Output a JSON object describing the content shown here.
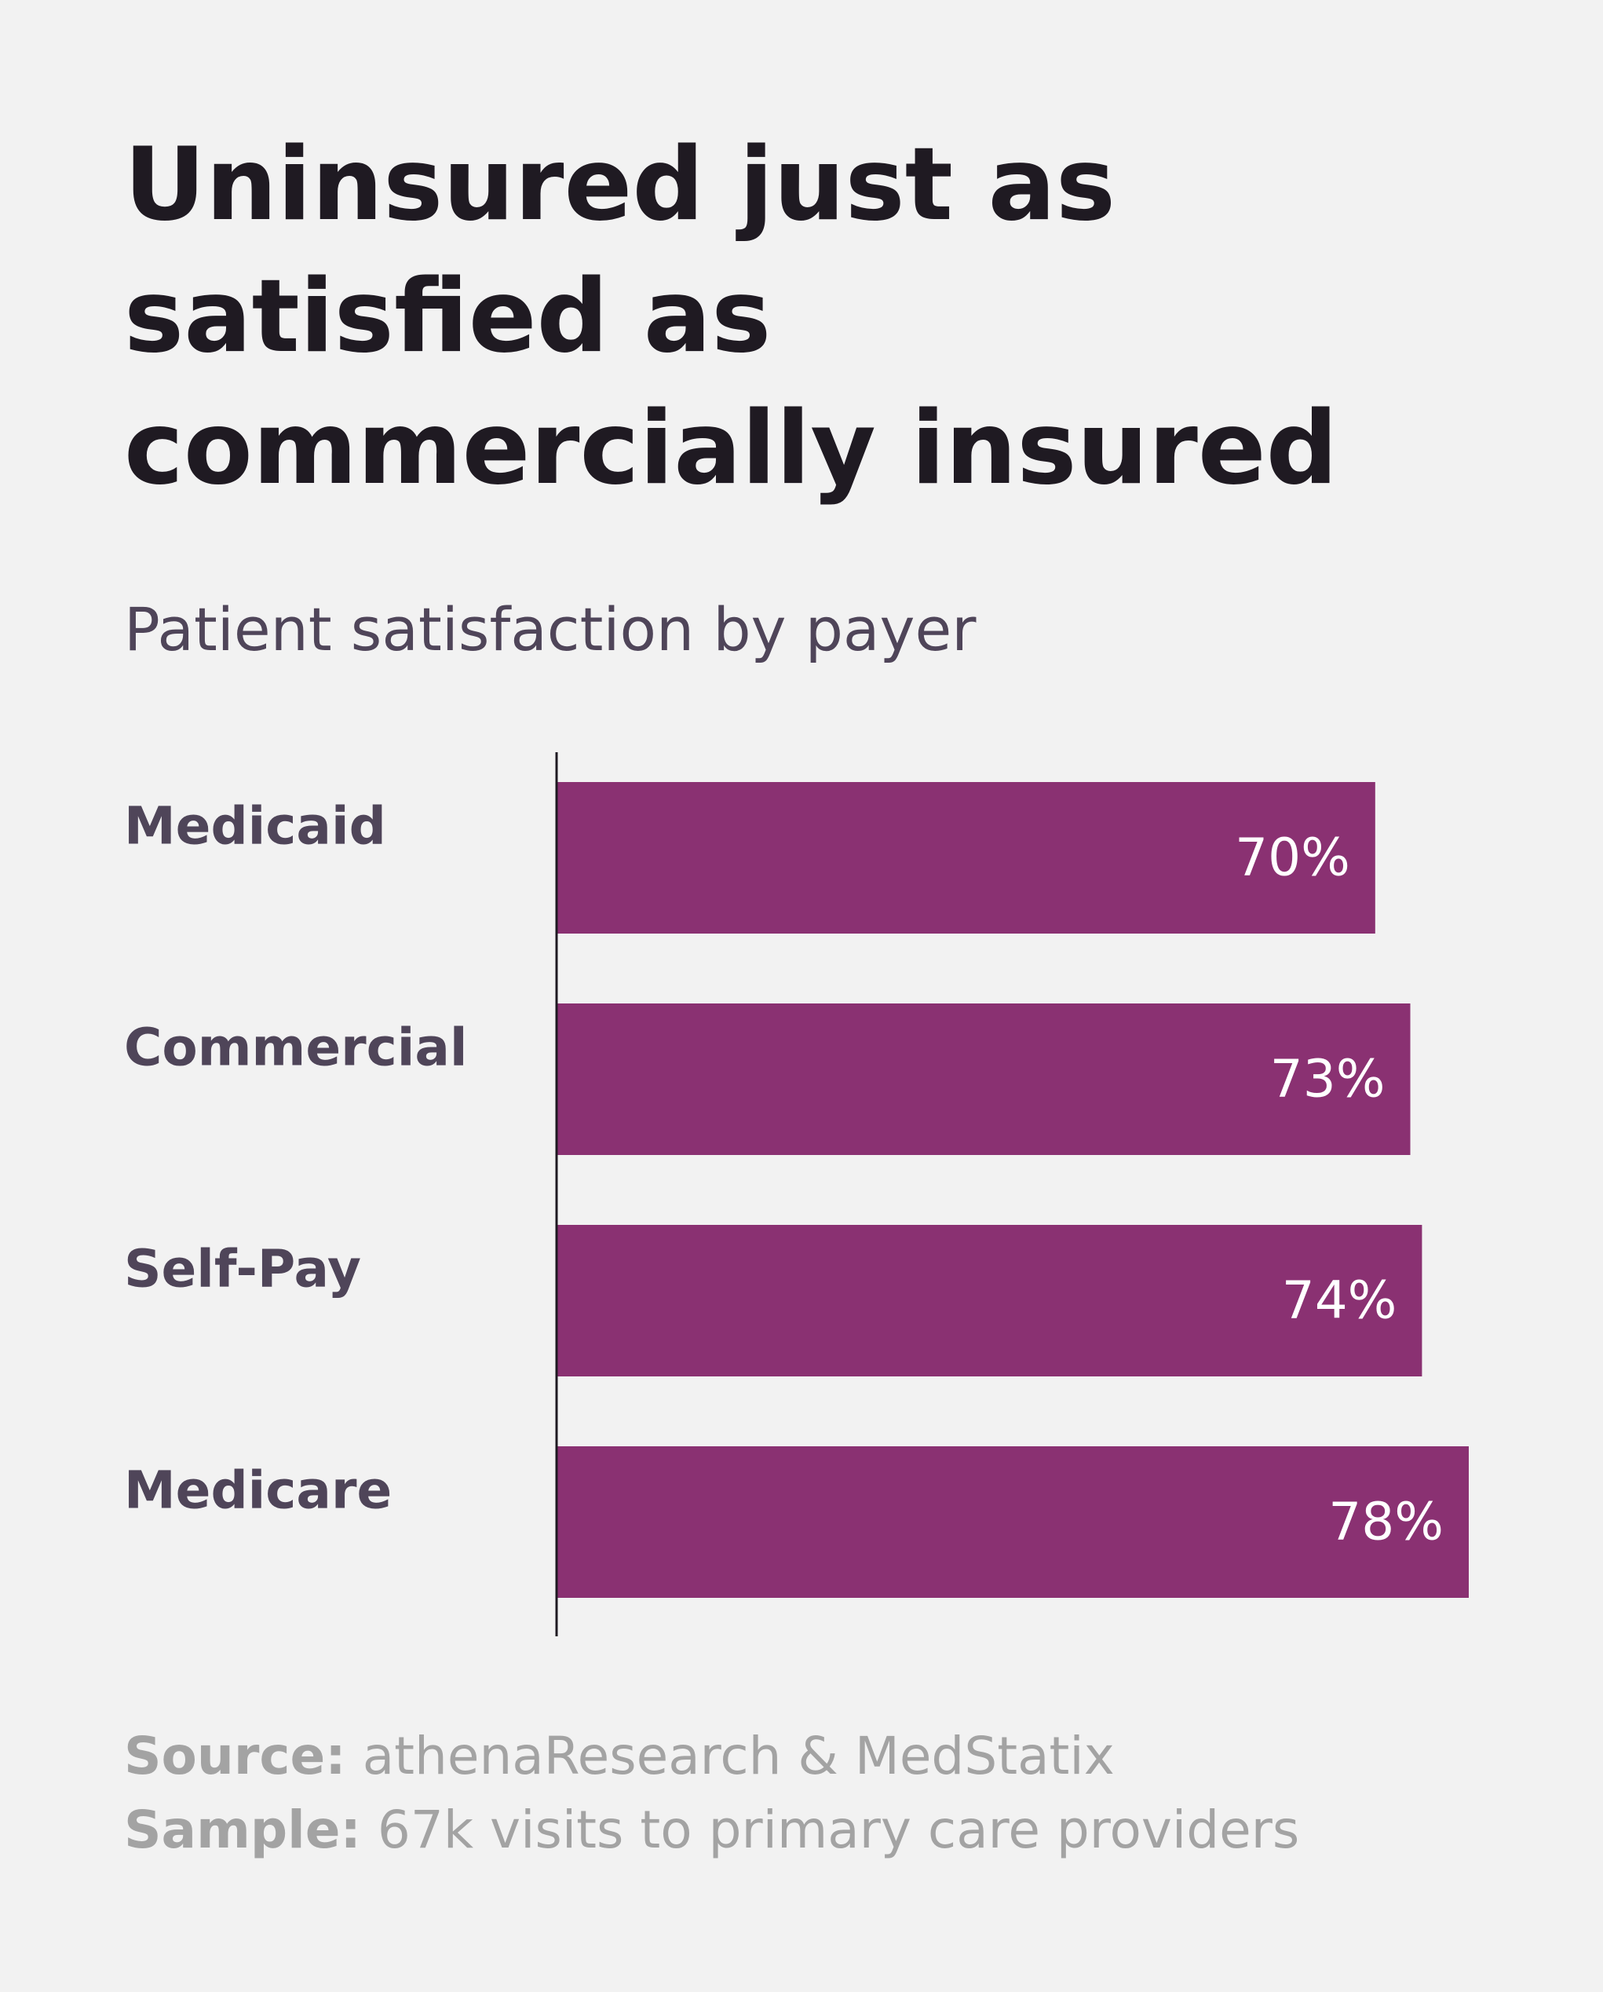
{
  "colors": {
    "background": "#f2f2f2",
    "bar": "#8a3172",
    "title": "#1f1a22",
    "label": "#4f4559",
    "footer": "#a3a3a3",
    "axis": "#1f1a22",
    "value_text": "#ffffff"
  },
  "chart_data": {
    "type": "bar",
    "orientation": "horizontal",
    "title": "Uninsured just as satisfied as commercially insured",
    "subtitle": "Patient satisfaction by payer",
    "categories": [
      "Medicaid",
      "Commercial",
      "Self-Pay",
      "Medicare"
    ],
    "values": [
      70,
      73,
      74,
      78
    ],
    "value_labels": [
      "70%",
      "73%",
      "74%",
      "78%"
    ],
    "value_unit": "%",
    "xlim": [
      0,
      78
    ],
    "grid": false,
    "legend": "none"
  },
  "footer": {
    "source_label": "Source:",
    "source_text": "athenaResearch & MedStatix",
    "sample_label": "Sample:",
    "sample_text": "67k visits to primary care providers"
  }
}
